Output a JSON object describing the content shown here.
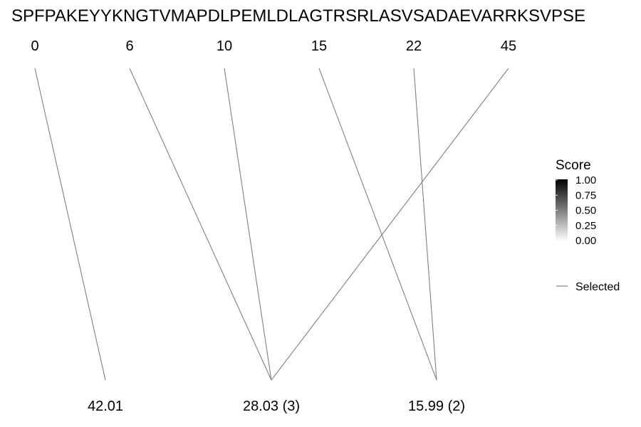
{
  "sequence": "SPFPAKEYYKNGTVMAPDLPEMLDLAGTRSRLASVSADAEVARRKSVPSE",
  "top_labels": [
    "0",
    "6",
    "10",
    "15",
    "22",
    "45"
  ],
  "bottom_labels": [
    "42.01",
    "28.03 (3)",
    "15.99 (2)"
  ],
  "links": [
    {
      "from": 0,
      "to": 0
    },
    {
      "from": 1,
      "to": 1
    },
    {
      "from": 2,
      "to": 1
    },
    {
      "from": 5,
      "to": 1
    },
    {
      "from": 3,
      "to": 2
    },
    {
      "from": 4,
      "to": 2
    }
  ],
  "legend": {
    "title": "Score",
    "ticks": [
      "1.00",
      "0.75",
      "0.50",
      "0.25",
      "0.00"
    ],
    "selected_label": "Selected"
  },
  "colors": {
    "line": "#808080",
    "gradient_top": "#000000",
    "gradient_bottom": "#ffffff"
  }
}
